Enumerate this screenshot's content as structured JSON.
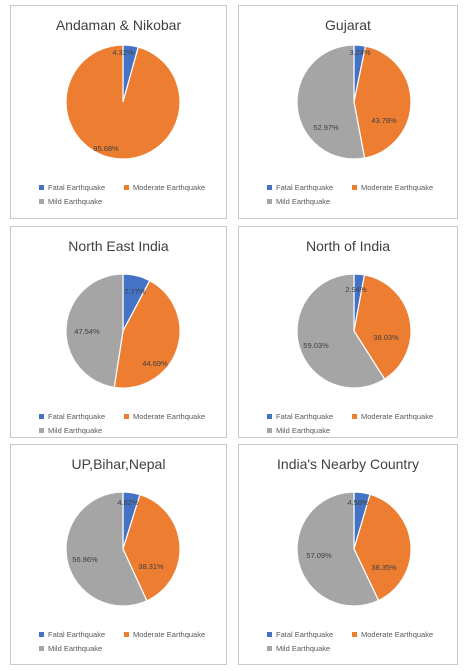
{
  "colors": {
    "fatal": "#4472c4",
    "moderate": "#ed7d31",
    "mild": "#a5a5a5"
  },
  "legend_labels": [
    "Fatal Earthquake",
    "Moderate Earthquake",
    "Mild Earthquake"
  ],
  "chart_data": [
    {
      "type": "pie",
      "title": "Andaman & Nikobar",
      "categories": [
        "Fatal Earthquake",
        "Moderate Earthquake",
        "Mild Earthquake"
      ],
      "values": [
        4.32,
        95.68,
        0
      ],
      "labels": [
        "4.32%",
        "95.68%",
        ""
      ],
      "legend": "bottom"
    },
    {
      "type": "pie",
      "title": "Gujarat",
      "categories": [
        "Fatal Earthquake",
        "Moderate Earthquake",
        "Mild Earthquake"
      ],
      "values": [
        3.24,
        43.78,
        52.97
      ],
      "labels": [
        "3.24%",
        "43.78%",
        "52.97%"
      ],
      "legend": "bottom"
    },
    {
      "type": "pie",
      "title": "North East India",
      "categories": [
        "Fatal Earthquake",
        "Moderate Earthquake",
        "Mild Earthquake"
      ],
      "values": [
        7.77,
        44.69,
        47.54
      ],
      "labels": [
        "7.77%",
        "44.69%",
        "47.54%"
      ],
      "legend": "bottom"
    },
    {
      "type": "pie",
      "title": "North of India",
      "categories": [
        "Fatal Earthquake",
        "Moderate Earthquake",
        "Mild Earthquake"
      ],
      "values": [
        2.94,
        38.03,
        59.03
      ],
      "labels": [
        "2.94%",
        "38.03%",
        "59.03%"
      ],
      "legend": "bottom"
    },
    {
      "type": "pie",
      "title": "UP,Bihar,Nepal",
      "categories": [
        "Fatal Earthquake",
        "Moderate Earthquake",
        "Mild Earthquake"
      ],
      "values": [
        4.82,
        38.31,
        56.86
      ],
      "labels": [
        "4.82%",
        "38.31%",
        "56.86%"
      ],
      "legend": "bottom"
    },
    {
      "type": "pie",
      "title": "India's Nearby Country",
      "categories": [
        "Fatal Earthquake",
        "Moderate Earthquake",
        "Mild Earthquake"
      ],
      "values": [
        4.56,
        38.35,
        57.09
      ],
      "labels": [
        "4.56%",
        "38.35%",
        "57.09%"
      ],
      "legend": "bottom"
    }
  ]
}
